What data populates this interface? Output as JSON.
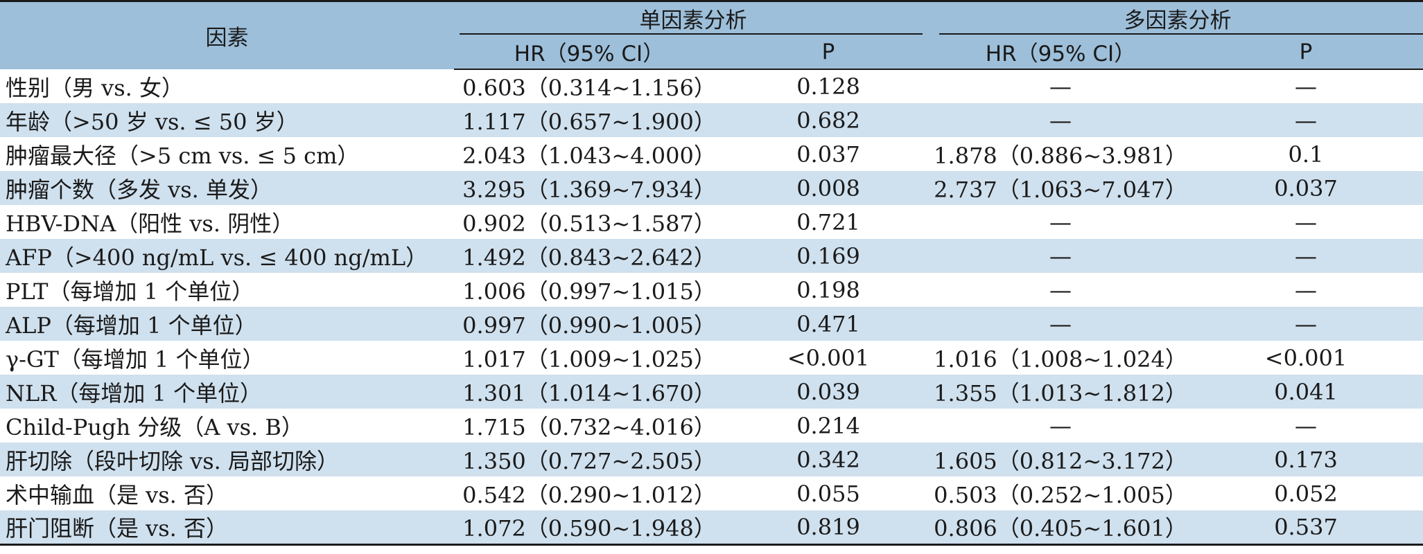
{
  "table": {
    "header": {
      "factor": "因素",
      "univariate": "单因素分析",
      "multivariate": "多因素分析",
      "hr": "HR（95% CI）",
      "p": "P"
    },
    "rows": [
      {
        "factor": "性别（男 vs. 女）",
        "uni_hr": "0.603（0.314~1.156）",
        "uni_p": "0.128",
        "multi_hr": "—",
        "multi_p": "—"
      },
      {
        "factor": "年龄（>50 岁 vs. ≤ 50 岁）",
        "uni_hr": "1.117（0.657~1.900）",
        "uni_p": "0.682",
        "multi_hr": "—",
        "multi_p": "—"
      },
      {
        "factor": "肿瘤最大径（>5 cm vs. ≤ 5 cm）",
        "uni_hr": "2.043（1.043~4.000）",
        "uni_p": "0.037",
        "multi_hr": "1.878（0.886~3.981）",
        "multi_p": "0.1"
      },
      {
        "factor": "肿瘤个数（多发 vs. 单发）",
        "uni_hr": "3.295（1.369~7.934）",
        "uni_p": "0.008",
        "multi_hr": "2.737（1.063~7.047）",
        "multi_p": "0.037"
      },
      {
        "factor": "HBV-DNA（阳性 vs. 阴性）",
        "uni_hr": "0.902（0.513~1.587）",
        "uni_p": "0.721",
        "multi_hr": "—",
        "multi_p": "—"
      },
      {
        "factor": "AFP（>400 ng/mL vs. ≤ 400 ng/mL）",
        "uni_hr": "1.492（0.843~2.642）",
        "uni_p": "0.169",
        "multi_hr": "—",
        "multi_p": "—"
      },
      {
        "factor": "PLT（每增加 1 个单位）",
        "uni_hr": "1.006（0.997~1.015）",
        "uni_p": "0.198",
        "multi_hr": "—",
        "multi_p": "—"
      },
      {
        "factor": "ALP（每增加 1 个单位）",
        "uni_hr": "0.997（0.990~1.005）",
        "uni_p": "0.471",
        "multi_hr": "—",
        "multi_p": "—"
      },
      {
        "factor": "γ-GT（每增加 1 个单位）",
        "uni_hr": "1.017（1.009~1.025）",
        "uni_p": "<0.001",
        "multi_hr": "1.016（1.008~1.024）",
        "multi_p": "<0.001"
      },
      {
        "factor": "NLR（每增加 1 个单位）",
        "uni_hr": "1.301（1.014~1.670）",
        "uni_p": "0.039",
        "multi_hr": "1.355（1.013~1.812）",
        "multi_p": "0.041"
      },
      {
        "factor": "Child-Pugh 分级（A vs. B）",
        "uni_hr": "1.715（0.732~4.016）",
        "uni_p": "0.214",
        "multi_hr": "—",
        "multi_p": "—"
      },
      {
        "factor": "肝切除（段叶切除 vs. 局部切除）",
        "uni_hr": "1.350（0.727~2.505）",
        "uni_p": "0.342",
        "multi_hr": "1.605（0.812~3.172）",
        "multi_p": "0.173"
      },
      {
        "factor": "术中输血（是 vs. 否）",
        "uni_hr": "0.542（0.290~1.012）",
        "uni_p": "0.055",
        "multi_hr": "0.503（0.252~1.005）",
        "multi_p": "0.052"
      },
      {
        "factor": "肝门阻断（是 vs. 否）",
        "uni_hr": "1.072（0.590~1.948）",
        "uni_p": "0.819",
        "multi_hr": "0.806（0.405~1.601）",
        "multi_p": "0.537"
      }
    ]
  },
  "colors": {
    "header_bg": "#9dbfda",
    "stripe_bg": "#cfe0ee",
    "rule": "#1a1a1a"
  }
}
